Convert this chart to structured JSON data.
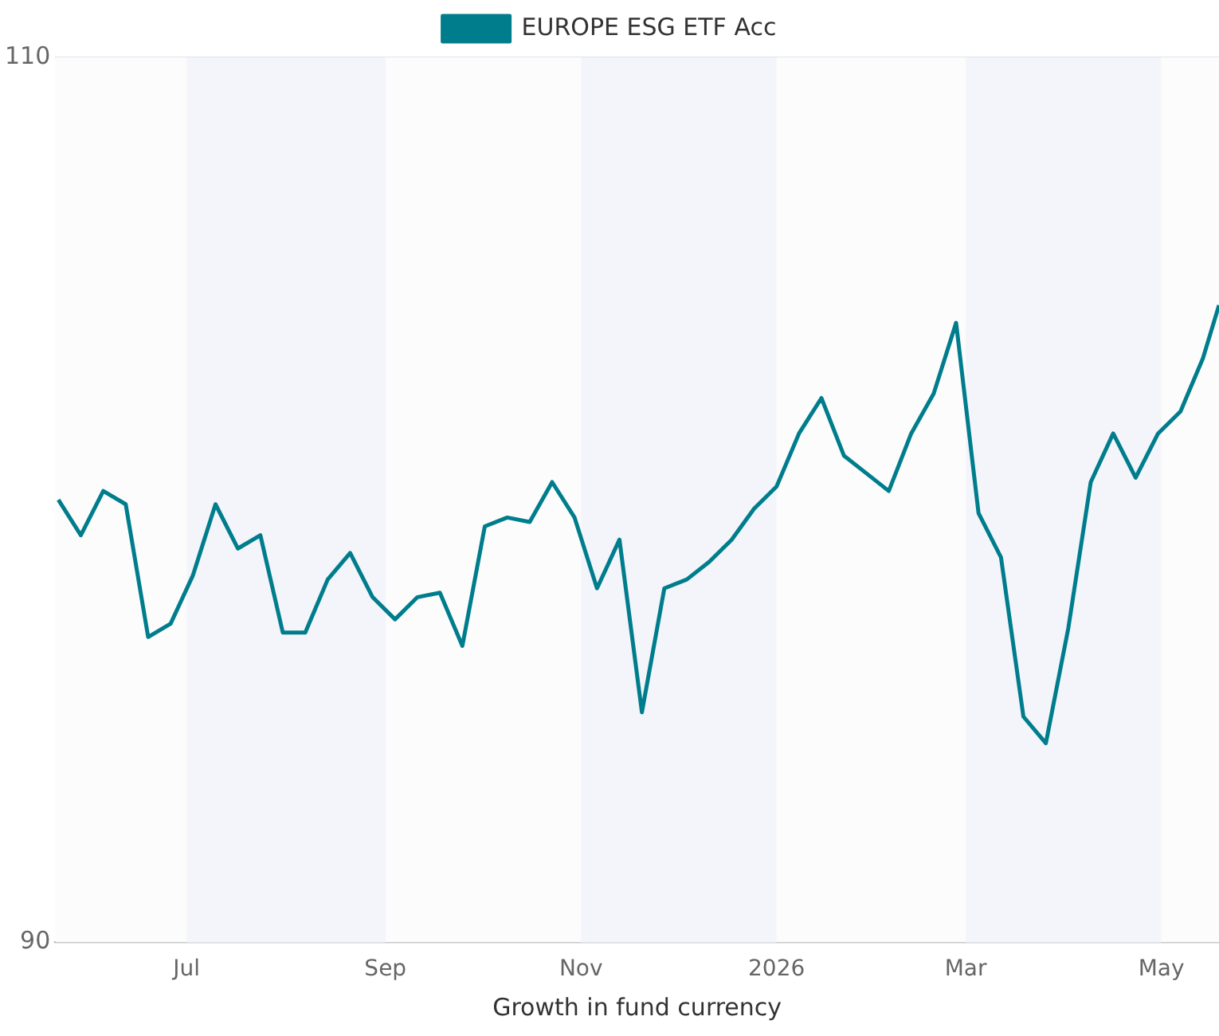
{
  "chart_data": {
    "type": "line",
    "xlabel": "Growth in fund currency",
    "x": [
      "2025-05-22",
      "2025-05-29",
      "2025-06-05",
      "2025-06-12",
      "2025-06-19",
      "2025-06-26",
      "2025-07-03",
      "2025-07-10",
      "2025-07-17",
      "2025-07-24",
      "2025-07-31",
      "2025-08-07",
      "2025-08-14",
      "2025-08-21",
      "2025-08-28",
      "2025-09-04",
      "2025-09-11",
      "2025-09-18",
      "2025-09-25",
      "2025-10-02",
      "2025-10-09",
      "2025-10-16",
      "2025-10-23",
      "2025-10-30",
      "2025-11-06",
      "2025-11-13",
      "2025-11-20",
      "2025-11-27",
      "2025-12-04",
      "2025-12-11",
      "2025-12-18",
      "2025-12-25",
      "2026-01-01",
      "2026-01-08",
      "2026-01-15",
      "2026-01-22",
      "2026-01-29",
      "2026-02-05",
      "2026-02-12",
      "2026-02-19",
      "2026-02-26",
      "2026-03-05",
      "2026-03-12",
      "2026-03-19",
      "2026-03-26",
      "2026-04-02",
      "2026-04-09",
      "2026-04-16",
      "2026-04-23",
      "2026-04-30",
      "2026-05-07",
      "2026-05-14",
      "2026-05-19"
    ],
    "series": [
      {
        "name": "EUROPE ESG ETF Acc",
        "color": "#007d8c",
        "values": [
          100.0,
          99.2,
          100.2,
          99.9,
          96.9,
          97.2,
          98.3,
          99.9,
          98.9,
          99.2,
          97.0,
          97.0,
          98.2,
          98.8,
          97.8,
          97.3,
          97.8,
          97.9,
          96.7,
          99.4,
          99.6,
          99.5,
          100.4,
          99.6,
          98.0,
          99.1,
          95.2,
          98.0,
          98.2,
          98.6,
          99.1,
          99.8,
          100.3,
          101.5,
          102.3,
          101.0,
          100.6,
          100.2,
          101.5,
          102.4,
          104.0,
          99.7,
          98.7,
          95.1,
          94.5,
          97.1,
          100.4,
          101.5,
          100.5,
          101.5,
          102.0,
          103.2,
          104.4
        ]
      }
    ],
    "xlim": [
      "2025-05-21",
      "2026-05-19"
    ],
    "xticks": [
      {
        "value": "2025-07-01",
        "label": "Jul"
      },
      {
        "value": "2025-09-01",
        "label": "Sep"
      },
      {
        "value": "2025-11-01",
        "label": "Nov"
      },
      {
        "value": "2026-01-01",
        "label": "2026"
      },
      {
        "value": "2026-03-01",
        "label": "Mar"
      },
      {
        "value": "2026-05-01",
        "label": "May"
      }
    ],
    "ylim": [
      90,
      110
    ],
    "yticks": [
      90,
      110
    ],
    "bands": [
      {
        "axis": "x",
        "from": "2025-07-01",
        "to": "2025-09-01",
        "color": "#f3f5fa"
      },
      {
        "axis": "x",
        "from": "2025-11-01",
        "to": "2026-01-01",
        "color": "#f3f5fa"
      },
      {
        "axis": "x",
        "from": "2026-03-01",
        "to": "2026-05-01",
        "color": "#f3f5fa"
      }
    ],
    "grid": "y",
    "legend": "top",
    "marker": "none",
    "line_style": "solid"
  }
}
